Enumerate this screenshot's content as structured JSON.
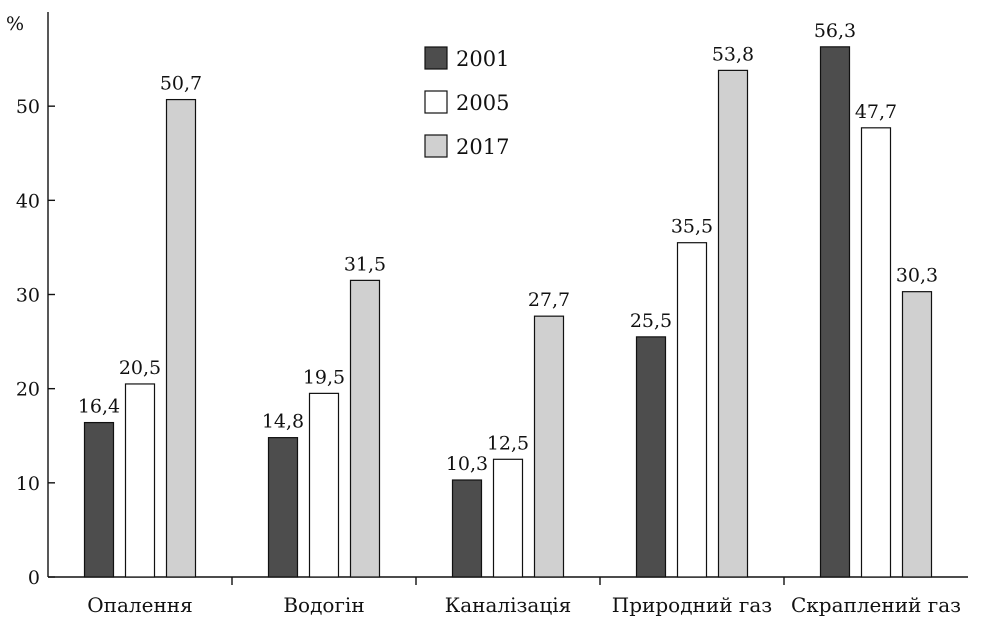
{
  "chart_data": {
    "type": "bar",
    "ylabel": "%",
    "ylim": [
      0,
      60
    ],
    "yticks": [
      0,
      10,
      20,
      30,
      40,
      50
    ],
    "grid": false,
    "legend_position": "top-center",
    "categories": [
      "Опалення",
      "Водогін",
      "Каналізація",
      "Природний газ",
      "Скраплений газ"
    ],
    "series": [
      {
        "name": "2001",
        "color": "#4d4d4d",
        "values": [
          16.4,
          14.8,
          10.3,
          25.5,
          56.3
        ],
        "labels": [
          "16,4",
          "14,8",
          "10,3",
          "25,5",
          "56,3"
        ]
      },
      {
        "name": "2005",
        "color": "#ffffff",
        "values": [
          20.5,
          19.5,
          12.5,
          35.5,
          47.7
        ],
        "labels": [
          "20,5",
          "19,5",
          "12,5",
          "35,5",
          "47,7"
        ]
      },
      {
        "name": "2017",
        "color": "#d0d0d0",
        "values": [
          50.7,
          31.5,
          27.7,
          53.8,
          30.3
        ],
        "labels": [
          "50,7",
          "31,5",
          "27,7",
          "53,8",
          "30,3"
        ]
      }
    ]
  }
}
